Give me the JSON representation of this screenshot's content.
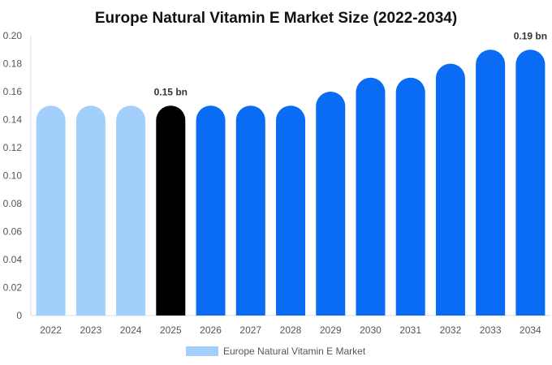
{
  "chart_data": {
    "type": "bar",
    "title": "Europe Natural Vitamin E Market Size (2022-2034)",
    "categories": [
      "2022",
      "2023",
      "2024",
      "2025",
      "2026",
      "2027",
      "2028",
      "2029",
      "2030",
      "2031",
      "2032",
      "2033",
      "2034"
    ],
    "series": [
      {
        "name": "Europe Natural Vitamin E Market",
        "values": [
          0.15,
          0.15,
          0.15,
          0.15,
          0.15,
          0.15,
          0.15,
          0.16,
          0.17,
          0.17,
          0.18,
          0.19,
          0.19
        ]
      }
    ],
    "bar_colors": [
      "#a3cffc",
      "#a3cffc",
      "#a3cffc",
      "#000000",
      "#0a6cf5",
      "#0a6cf5",
      "#0a6cf5",
      "#0a6cf5",
      "#0a6cf5",
      "#0a6cf5",
      "#0a6cf5",
      "#0a6cf5",
      "#0a6cf5"
    ],
    "data_labels": [
      {
        "category": "2025",
        "text": "0.15 bn"
      },
      {
        "category": "2034",
        "text": "0.19 bn"
      }
    ],
    "yticks": [
      "0",
      "0.02",
      "0.04",
      "0.06",
      "0.08",
      "0.10",
      "0.12",
      "0.14",
      "0.16",
      "0.18",
      "0.20"
    ],
    "ylim": [
      0,
      0.2
    ],
    "xlabel": "",
    "ylabel": "",
    "legend_color": "#a3cffc",
    "legend_position": "bottom"
  }
}
